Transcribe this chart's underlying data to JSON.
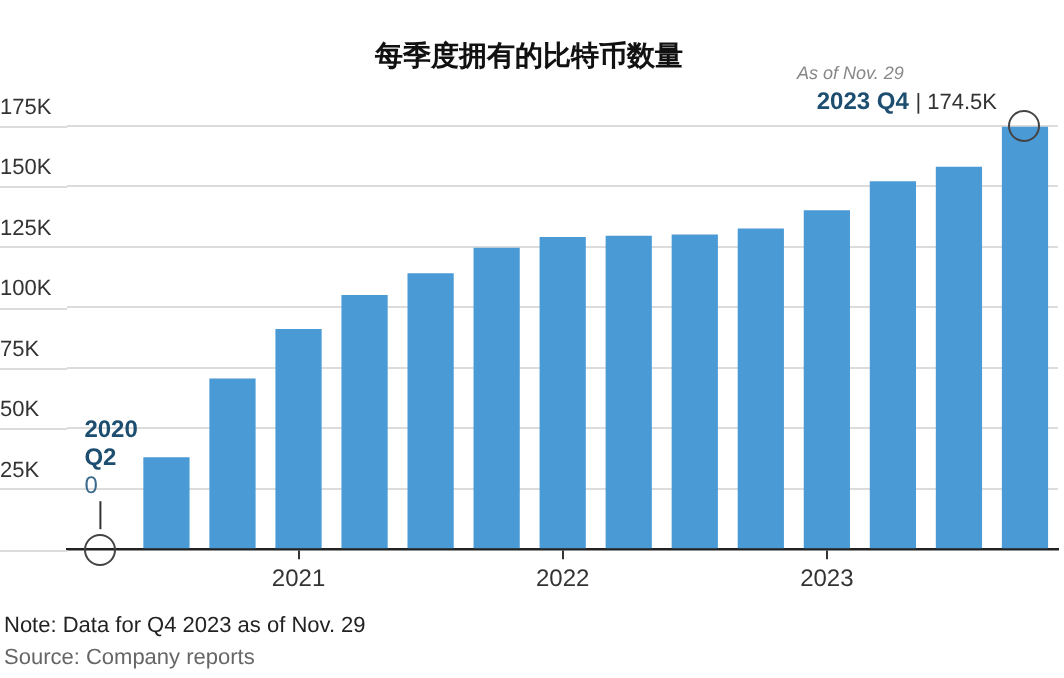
{
  "chart_data": {
    "type": "bar",
    "title": "每季度拥有的比特币数量",
    "categories": [
      null,
      null,
      null,
      "2021",
      null,
      null,
      null,
      "2022",
      null,
      null,
      null,
      "2023",
      null,
      null,
      null
    ],
    "values": [
      0,
      38000,
      70500,
      91000,
      105000,
      114000,
      124500,
      129000,
      129500,
      130000,
      132500,
      140000,
      152000,
      158000,
      174500
    ],
    "color": "#4a9ad6",
    "ylim": [
      0,
      175000
    ],
    "yticks": [
      {
        "value": 0,
        "label": null
      },
      {
        "value": 25000,
        "label": "25K"
      },
      {
        "value": 50000,
        "label": "50K"
      },
      {
        "value": 75000,
        "label": "75K"
      },
      {
        "value": 100000,
        "label": "100K"
      },
      {
        "value": 125000,
        "label": "125K"
      },
      {
        "value": 150000,
        "label": "150K"
      },
      {
        "value": 175000,
        "label": "175K"
      }
    ],
    "grid": "y",
    "legend": false,
    "annotations": [
      "2020\nQ2\n0",
      "As of Nov. 29\n2023 Q4 | 174.5K",
      "Note: Data for Q4 2023 as of Nov. 29",
      "Source: Company reports"
    ]
  }
}
